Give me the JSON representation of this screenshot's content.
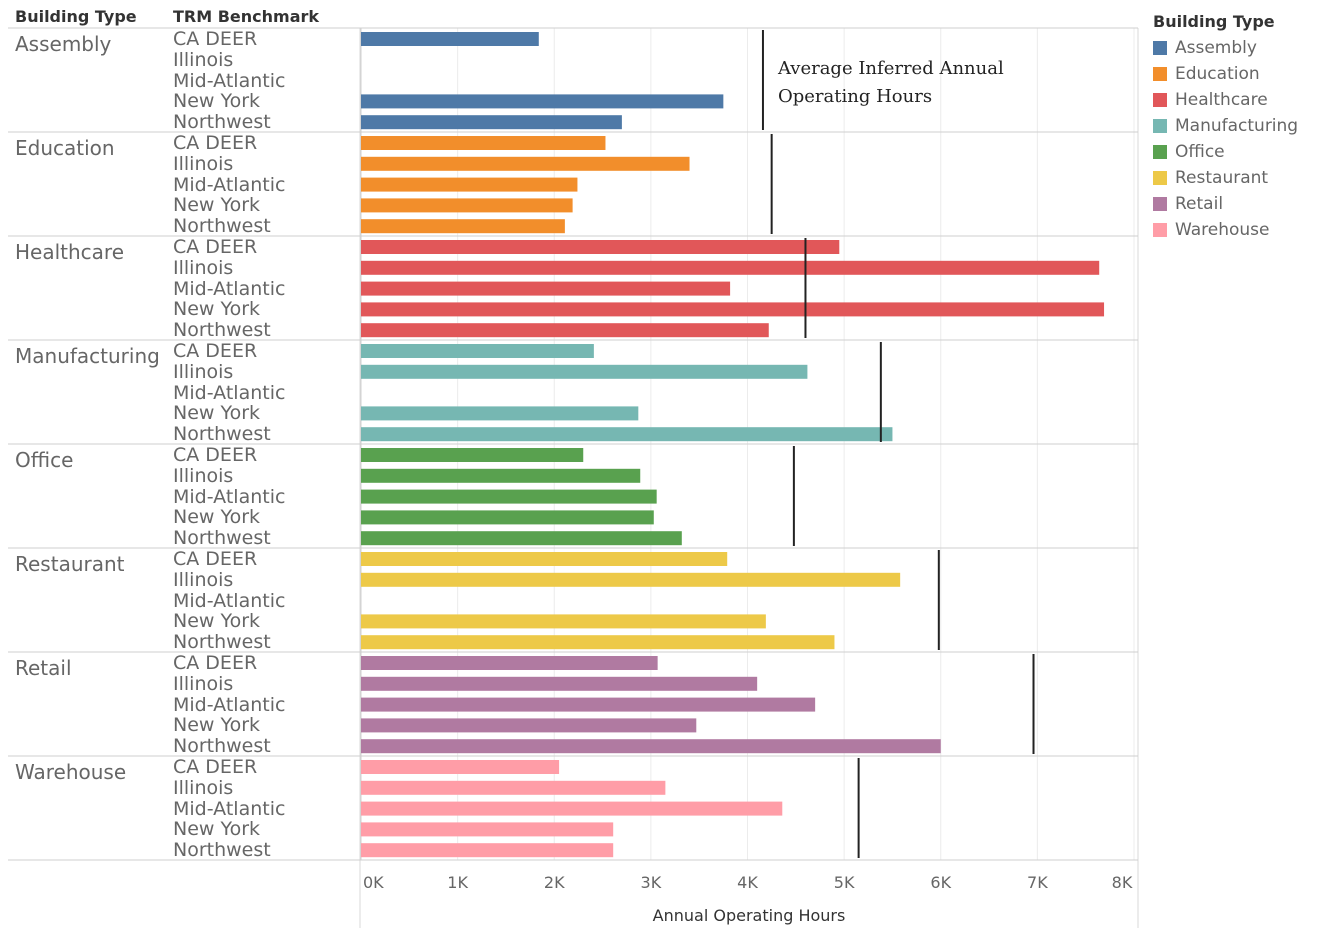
{
  "headers": {
    "building_type": "Building Type",
    "trm_benchmark": "TRM Benchmark"
  },
  "legend": {
    "title": "Building Type",
    "items": [
      {
        "label": "Assembly",
        "color": "#4e79a7"
      },
      {
        "label": "Education",
        "color": "#f28e2b"
      },
      {
        "label": "Healthcare",
        "color": "#e15759"
      },
      {
        "label": "Manufacturing",
        "color": "#76b7b2"
      },
      {
        "label": "Office",
        "color": "#59a14f"
      },
      {
        "label": "Restaurant",
        "color": "#edc948"
      },
      {
        "label": "Retail",
        "color": "#b07aa1"
      },
      {
        "label": "Warehouse",
        "color": "#ff9da7"
      }
    ]
  },
  "annotation": {
    "line1": "Average Inferred Annual",
    "line2": "Operating Hours"
  },
  "chart_data": {
    "type": "bar",
    "orientation": "horizontal",
    "xlabel": "Annual Operating Hours",
    "xlim": [
      0,
      8000
    ],
    "xticks": [
      "0K",
      "1K",
      "2K",
      "3K",
      "4K",
      "5K",
      "6K",
      "7K",
      "8K"
    ],
    "grid": true,
    "benchmarks": [
      "CA DEER",
      "Illinois",
      "Mid-Atlantic",
      "New York",
      "Northwest"
    ],
    "groups": [
      {
        "name": "Assembly",
        "color": "#4e79a7",
        "values": [
          1840,
          null,
          null,
          3750,
          2700
        ],
        "reference": 4160
      },
      {
        "name": "Education",
        "color": "#f28e2b",
        "values": [
          2530,
          3400,
          2240,
          2190,
          2110
        ],
        "reference": 4250
      },
      {
        "name": "Healthcare",
        "color": "#e15759",
        "values": [
          4950,
          7640,
          3820,
          7690,
          4220
        ],
        "reference": 4600
      },
      {
        "name": "Manufacturing",
        "color": "#76b7b2",
        "values": [
          2410,
          4620,
          null,
          2870,
          5500
        ],
        "reference": 5380
      },
      {
        "name": "Office",
        "color": "#59a14f",
        "values": [
          2300,
          2890,
          3060,
          3030,
          3320
        ],
        "reference": 4480
      },
      {
        "name": "Restaurant",
        "color": "#edc948",
        "values": [
          3790,
          5580,
          null,
          4190,
          4900
        ],
        "reference": 5980
      },
      {
        "name": "Retail",
        "color": "#b07aa1",
        "values": [
          3070,
          4100,
          4700,
          3470,
          6000
        ],
        "reference": 6960
      },
      {
        "name": "Warehouse",
        "color": "#ff9da7",
        "values": [
          2050,
          3150,
          4360,
          2610,
          2610
        ],
        "reference": 5150
      }
    ]
  }
}
